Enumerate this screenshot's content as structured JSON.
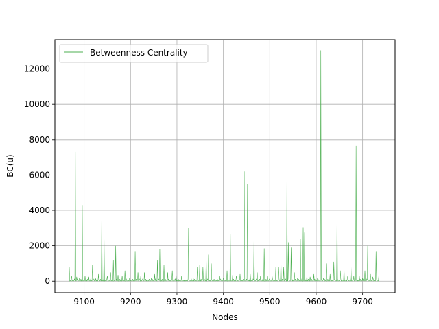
{
  "chart_data": {
    "type": "line",
    "title": "",
    "xlabel": "Nodes",
    "ylabel": "BC(u)",
    "xlim": [
      9037,
      9770
    ],
    "ylim": [
      -650,
      13650
    ],
    "xticks": [
      9100,
      9200,
      9300,
      9400,
      9500,
      9600,
      9700
    ],
    "yticks": [
      0,
      2000,
      4000,
      6000,
      8000,
      10000,
      12000
    ],
    "grid": true,
    "legend_position": "top-left",
    "series": [
      {
        "name": "Betweenness Centrality",
        "color": "#4caf50",
        "peaks": [
          [
            9068,
            800
          ],
          [
            9073,
            300
          ],
          [
            9081,
            7300
          ],
          [
            9084,
            250
          ],
          [
            9090,
            200
          ],
          [
            9096,
            4300
          ],
          [
            9102,
            300
          ],
          [
            9110,
            250
          ],
          [
            9118,
            900
          ],
          [
            9125,
            150
          ],
          [
            9131,
            400
          ],
          [
            9138,
            3650
          ],
          [
            9143,
            2350
          ],
          [
            9150,
            300
          ],
          [
            9157,
            500
          ],
          [
            9163,
            1200
          ],
          [
            9168,
            2000
          ],
          [
            9173,
            350
          ],
          [
            9182,
            300
          ],
          [
            9188,
            600
          ],
          [
            9198,
            200
          ],
          [
            9210,
            1700
          ],
          [
            9216,
            500
          ],
          [
            9222,
            300
          ],
          [
            9230,
            500
          ],
          [
            9245,
            200
          ],
          [
            9252,
            400
          ],
          [
            9258,
            1200
          ],
          [
            9263,
            1800
          ],
          [
            9272,
            900
          ],
          [
            9280,
            500
          ],
          [
            9290,
            600
          ],
          [
            9298,
            400
          ],
          [
            9310,
            300
          ],
          [
            9325,
            3000
          ],
          [
            9335,
            200
          ],
          [
            9344,
            800
          ],
          [
            9349,
            900
          ],
          [
            9356,
            800
          ],
          [
            9363,
            1400
          ],
          [
            9368,
            1500
          ],
          [
            9374,
            1000
          ],
          [
            9392,
            300
          ],
          [
            9400,
            200
          ],
          [
            9408,
            600
          ],
          [
            9415,
            2650
          ],
          [
            9420,
            350
          ],
          [
            9428,
            300
          ],
          [
            9436,
            400
          ],
          [
            9445,
            6200
          ],
          [
            9452,
            5500
          ],
          [
            9458,
            400
          ],
          [
            9466,
            2250
          ],
          [
            9473,
            500
          ],
          [
            9480,
            300
          ],
          [
            9488,
            1850
          ],
          [
            9495,
            300
          ],
          [
            9505,
            300
          ],
          [
            9513,
            800
          ],
          [
            9519,
            800
          ],
          [
            9524,
            1200
          ],
          [
            9530,
            800
          ],
          [
            9537,
            6000
          ],
          [
            9540,
            2200
          ],
          [
            9546,
            1900
          ],
          [
            9553,
            500
          ],
          [
            9560,
            200
          ],
          [
            9566,
            2400
          ],
          [
            9572,
            3050
          ],
          [
            9575,
            2750
          ],
          [
            9580,
            300
          ],
          [
            9587,
            250
          ],
          [
            9595,
            400
          ],
          [
            9603,
            200
          ],
          [
            9610,
            13050
          ],
          [
            9616,
            200
          ],
          [
            9622,
            1000
          ],
          [
            9630,
            400
          ],
          [
            9638,
            1100
          ],
          [
            9645,
            3900
          ],
          [
            9652,
            600
          ],
          [
            9660,
            700
          ],
          [
            9668,
            300
          ],
          [
            9675,
            800
          ],
          [
            9681,
            300
          ],
          [
            9686,
            7650
          ],
          [
            9693,
            300
          ],
          [
            9700,
            200
          ],
          [
            9705,
            600
          ],
          [
            9711,
            2000
          ],
          [
            9717,
            400
          ],
          [
            9722,
            250
          ],
          [
            9729,
            1700
          ],
          [
            9735,
            300
          ]
        ]
      }
    ]
  }
}
